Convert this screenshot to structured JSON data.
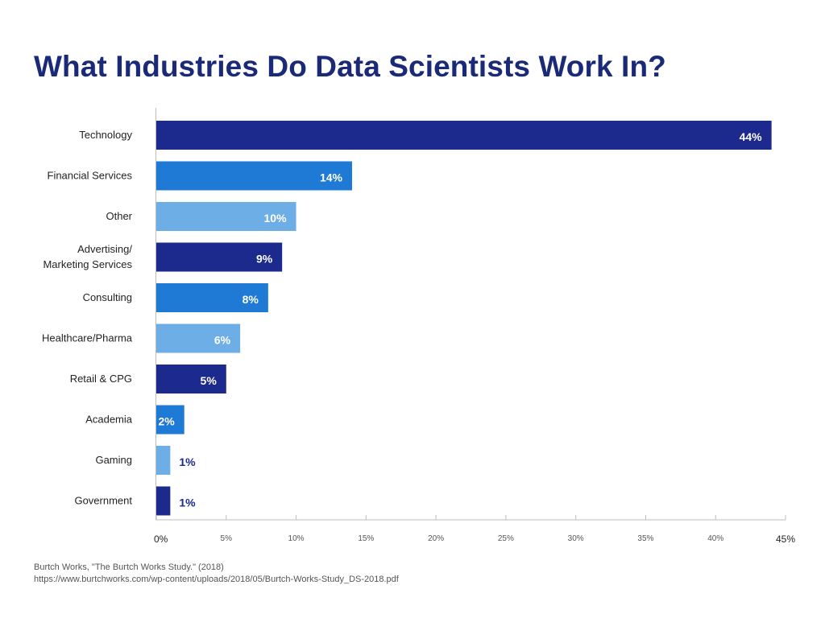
{
  "chart_data": {
    "type": "bar",
    "orientation": "horizontal",
    "title": "What Industries Do Data Scientists Work In?",
    "categories": [
      [
        "Technology"
      ],
      [
        "Financial Services"
      ],
      [
        "Other"
      ],
      [
        "Advertising/",
        "Marketing Services"
      ],
      [
        "Consulting"
      ],
      [
        "Healthcare/Pharma"
      ],
      [
        "Retail & CPG"
      ],
      [
        "Academia"
      ],
      [
        "Gaming"
      ],
      [
        "Government"
      ]
    ],
    "values": [
      44,
      14,
      10,
      9,
      8,
      6,
      5,
      2,
      1,
      1
    ],
    "value_labels": [
      "44%",
      "14%",
      "10%",
      "9%",
      "8%",
      "6%",
      "5%",
      "2%",
      "1%",
      "1%"
    ],
    "xlim": [
      0,
      45
    ],
    "x_ticks": [
      {
        "value": 0,
        "label": "0%"
      },
      {
        "value": 5,
        "label": "5%"
      },
      {
        "value": 10,
        "label": "10%"
      },
      {
        "value": 15,
        "label": "15%"
      },
      {
        "value": 20,
        "label": "20%"
      },
      {
        "value": 25,
        "label": "25%"
      },
      {
        "value": 30,
        "label": "30%"
      },
      {
        "value": 35,
        "label": "35%"
      },
      {
        "value": 40,
        "label": "40%"
      },
      {
        "value": 45,
        "label": "45%"
      }
    ],
    "bar_colors": [
      "#1b2a8c",
      "#1f7ad6",
      "#6daee6"
    ],
    "label_color_inside": "#ffffff",
    "label_color_outside": "#1b2a8c",
    "grid": false,
    "legend": "none"
  },
  "source": {
    "line1": "Burtch Works, \"The Burtch Works Study.\" (2018)",
    "line2": "https://www.burtchworks.com/wp-content/uploads/2018/05/Burtch-Works-Study_DS-2018.pdf"
  }
}
